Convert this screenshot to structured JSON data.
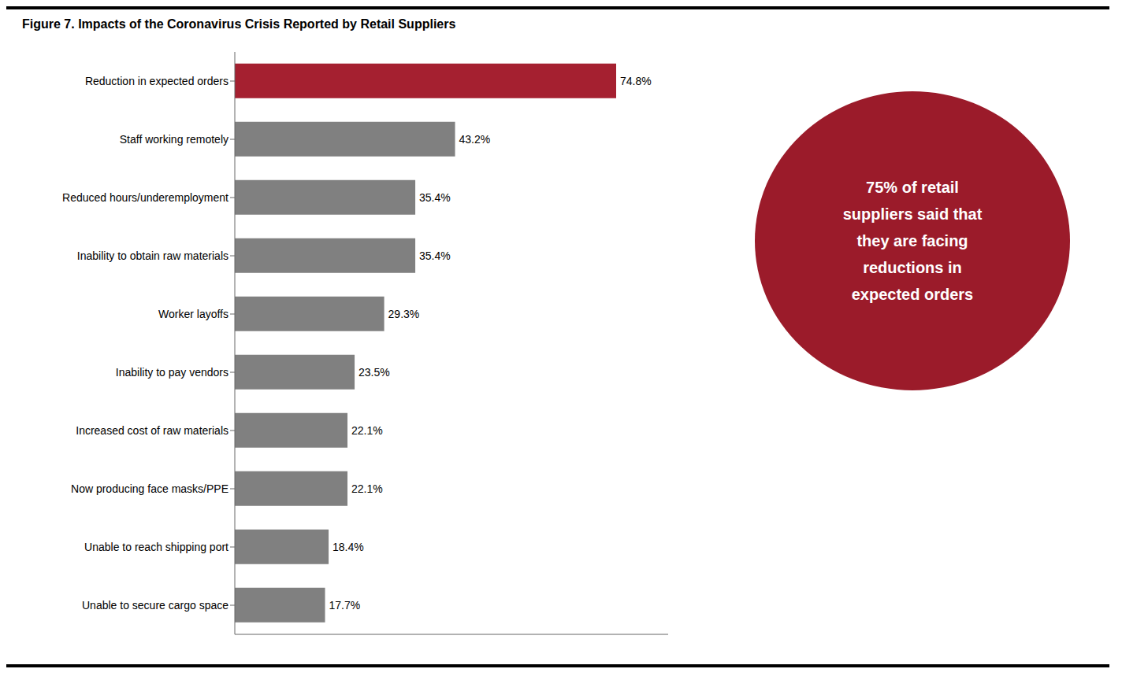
{
  "chart_data": {
    "type": "bar",
    "title": "Figure 7. Impacts of the Coronavirus Crisis Reported by Retail Suppliers",
    "orientation": "horizontal",
    "categories": [
      "Unable to secure cargo space",
      "Unable to reach shipping port",
      "Now producing face masks/PPE",
      "Increased cost of raw materials",
      "Inability to pay vendors",
      "Worker layoffs",
      "Inability to obtain raw materials",
      "Reduced hours/underemployment",
      "Staff working remotely",
      "Reduction in expected orders"
    ],
    "values": [
      17.7,
      18.4,
      22.1,
      22.1,
      23.5,
      29.3,
      35.4,
      35.4,
      43.2,
      74.8
    ],
    "value_labels": [
      "17.7%",
      "18.4%",
      "22.1%",
      "22.1%",
      "23.5%",
      "29.3%",
      "35.4%",
      "35.4%",
      "43.2%",
      "74.8%"
    ],
    "colors": [
      "#808080",
      "#808080",
      "#808080",
      "#808080",
      "#808080",
      "#808080",
      "#808080",
      "#808080",
      "#808080",
      "#A52030"
    ],
    "xlim": [
      0,
      85
    ],
    "grid": false,
    "data_labels": true,
    "tick_labels": "y",
    "annotations": [
      {
        "text": "75% of retail\nsuppliers said that\nthey are facing\nreductions in\nexpected orders",
        "color": "#9B1B2A"
      }
    ]
  }
}
